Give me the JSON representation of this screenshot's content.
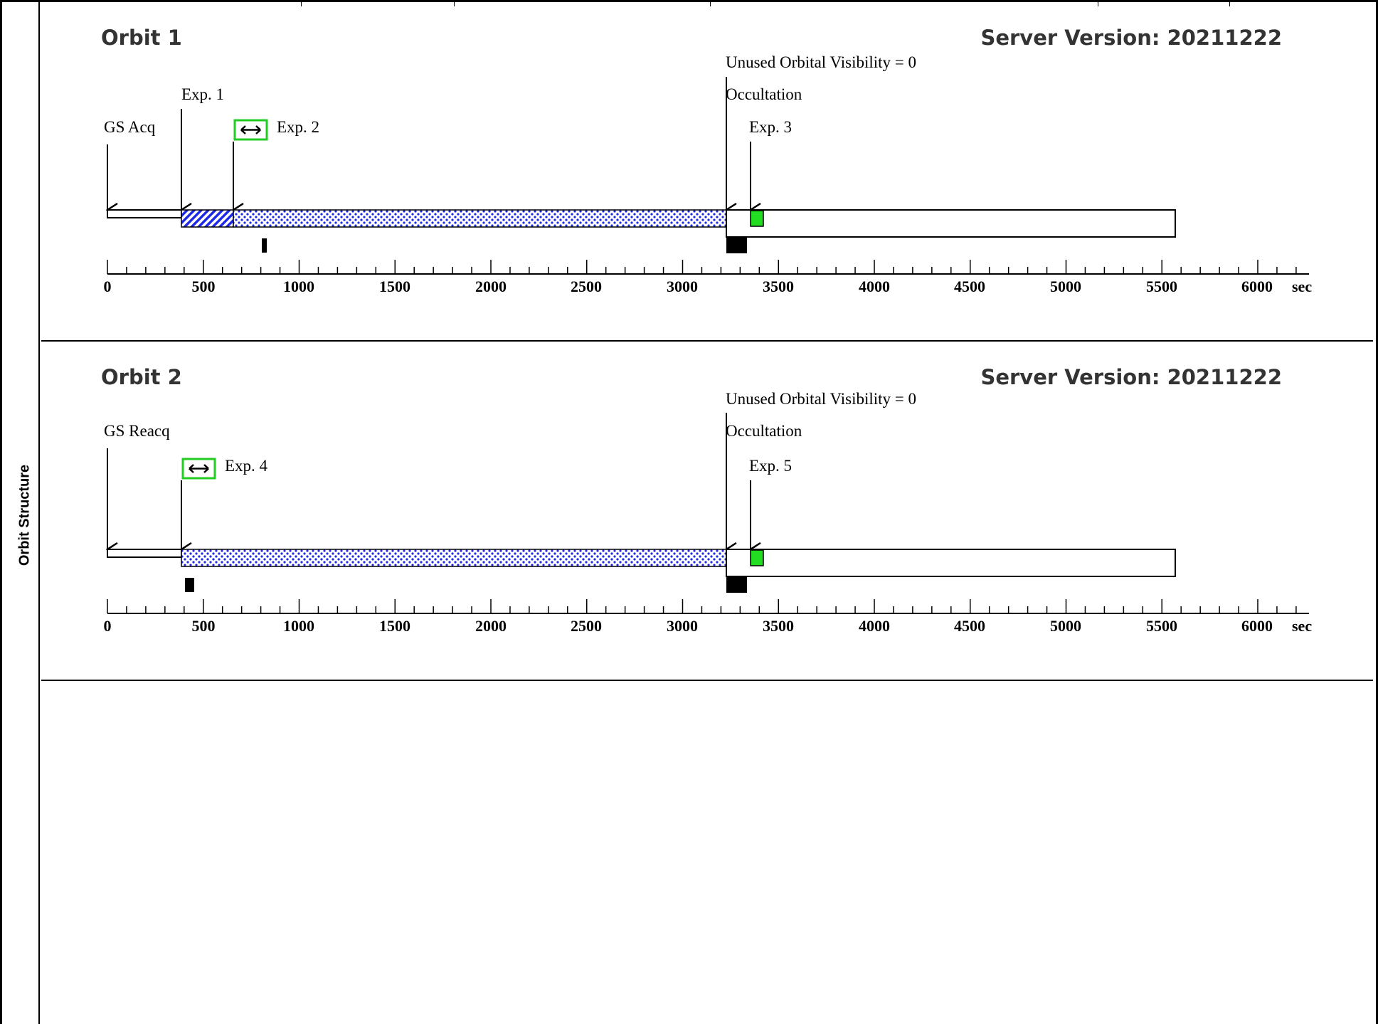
{
  "side_label": "Orbit Structure",
  "colors": {
    "exposure_green": "#22cc22",
    "dotted_blue": "#1f28e6",
    "border": "#000000"
  },
  "orbits": [
    {
      "title": "Orbit 1",
      "server_version": "Server Version: 20211222",
      "unused_visibility": "Unused Orbital Visibility = 0",
      "occultation_label": "Occultation",
      "events": [
        {
          "label": "GS Acq",
          "time": 0
        },
        {
          "label": "Exp. 1",
          "time": 390
        },
        {
          "label": "Exp. 2",
          "time": 660,
          "icon": "double-arrow-icon"
        },
        {
          "label": "Exp. 3",
          "time": 3350
        }
      ],
      "axis_ticks": [
        "0",
        "500",
        "1000",
        "1500",
        "2000",
        "2500",
        "3000",
        "3500",
        "4000",
        "4500",
        "5000",
        "5500",
        "6000"
      ],
      "axis_unit": "sec"
    },
    {
      "title": "Orbit 2",
      "server_version": "Server Version: 20211222",
      "unused_visibility": "Unused Orbital Visibility = 0",
      "occultation_label": "Occultation",
      "events": [
        {
          "label": "GS Reacq",
          "time": 0
        },
        {
          "label": "Exp. 4",
          "time": 390,
          "icon": "double-arrow-icon"
        },
        {
          "label": "Exp. 5",
          "time": 3350
        }
      ],
      "axis_ticks": [
        "0",
        "500",
        "1000",
        "1500",
        "2000",
        "2500",
        "3000",
        "3500",
        "4000",
        "4500",
        "5000",
        "5500",
        "6000"
      ],
      "axis_unit": "sec"
    }
  ]
}
